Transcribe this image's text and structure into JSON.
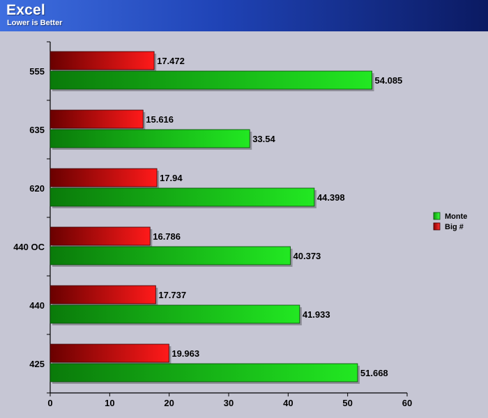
{
  "chart_data": {
    "type": "bar",
    "orientation": "horizontal",
    "title": "Excel",
    "subtitle": "Lower is Better",
    "categories": [
      "555",
      "635",
      "620",
      "440 OC",
      "440",
      "425"
    ],
    "series": [
      {
        "name": "Big #",
        "values": [
          17.472,
          15.616,
          17.94,
          16.786,
          17.737,
          19.963
        ],
        "color": "#ee0000"
      },
      {
        "name": "Monte",
        "values": [
          54.085,
          33.54,
          44.398,
          40.373,
          41.933,
          51.668
        ],
        "color": "#22dd22"
      }
    ],
    "value_labels": {
      "Big #": [
        "17.472",
        "15.616",
        "17.94",
        "16.786",
        "17.737",
        "19.963"
      ],
      "Monte": [
        "54.085",
        "33.54",
        "44.398",
        "40.373",
        "41.933",
        "51.668"
      ]
    },
    "legend_order": [
      "Monte",
      "Big #"
    ],
    "xlim": [
      0,
      60
    ],
    "xticks": [
      0,
      10,
      20,
      30,
      40,
      50,
      60
    ],
    "grid": false,
    "legend_position": "right"
  },
  "colors": {
    "background": "#c6c6d4",
    "plot_background": "#c6c6d4",
    "header_start": "#3f6fe0",
    "header_end": "#0b1a62",
    "monte_light": "#22e822",
    "monte_dark": "#0a7a0a",
    "big_light": "#ff1a1a",
    "big_dark": "#6a0000"
  }
}
